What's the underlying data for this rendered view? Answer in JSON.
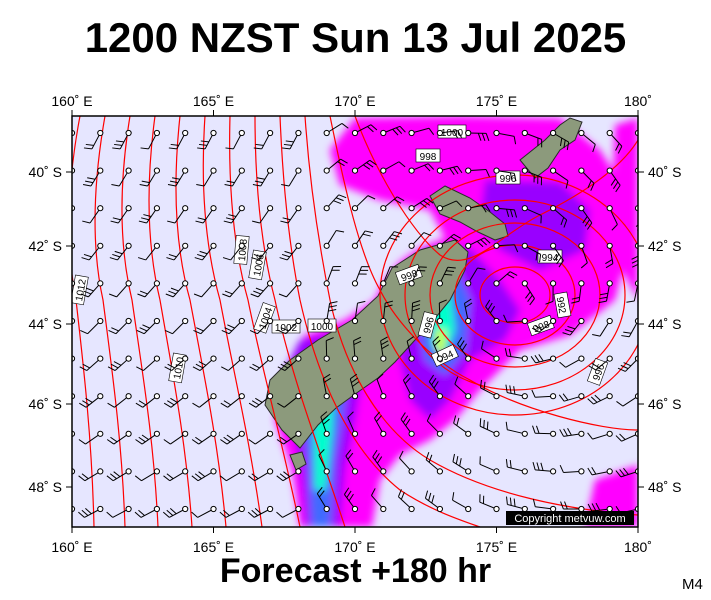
{
  "title": "1200 NZST Sun 13 Jul 2025",
  "forecast": "Forecast +180 hr",
  "model": "M4",
  "copyright": "Copyright metvuw.com",
  "axes": {
    "lon_ticks": [
      "160˚ E",
      "165˚ E",
      "170˚ E",
      "175˚ E",
      "180˚"
    ],
    "lat_ticks": [
      "40˚ S",
      "42˚ S",
      "44˚ S",
      "46˚ S",
      "48˚ S"
    ],
    "lon_range": [
      160,
      180
    ],
    "lat_range": [
      -49.3,
      -38.5
    ]
  },
  "isobar_labels": [
    "1000",
    "998",
    "996",
    "994",
    "992",
    "998",
    "1008",
    "1006",
    "1004",
    "1002",
    "1000",
    "1010",
    "1012",
    "996",
    "998",
    "994",
    "996"
  ],
  "colors": {
    "background": "#e6e6ff",
    "isobar": "#ff0000",
    "precip_light": "#ff00ff",
    "precip_mid": "#9900ff",
    "precip_heavy": "#00ffcc",
    "land": "#8c9a7c"
  },
  "low_center": {
    "lat": -43.7,
    "lon": 176.5
  }
}
